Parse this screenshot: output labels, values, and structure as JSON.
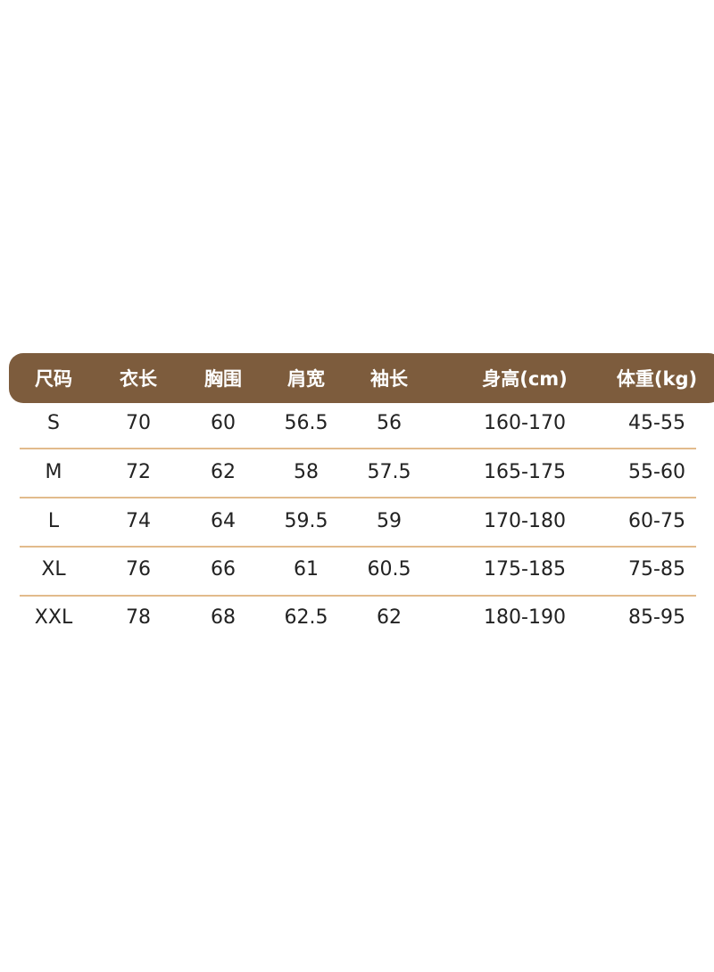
{
  "table": {
    "header_color": "#7d5c3d",
    "divider_color": "#e2bb8c",
    "headers": [
      "尺码",
      "衣长",
      "胸围",
      "肩宽",
      "袖长",
      "身高(cm)",
      "体重(kg)"
    ],
    "rows": [
      [
        "S",
        "70",
        "60",
        "56.5",
        "56",
        "160-170",
        "45-55"
      ],
      [
        "M",
        "72",
        "62",
        "58",
        "57.5",
        "165-175",
        "55-60"
      ],
      [
        "L",
        "74",
        "64",
        "59.5",
        "59",
        "170-180",
        "60-75"
      ],
      [
        "XL",
        "76",
        "66",
        "61",
        "60.5",
        "175-185",
        "75-85"
      ],
      [
        "XXL",
        "78",
        "68",
        "62.5",
        "62",
        "180-190",
        "85-95"
      ]
    ]
  }
}
